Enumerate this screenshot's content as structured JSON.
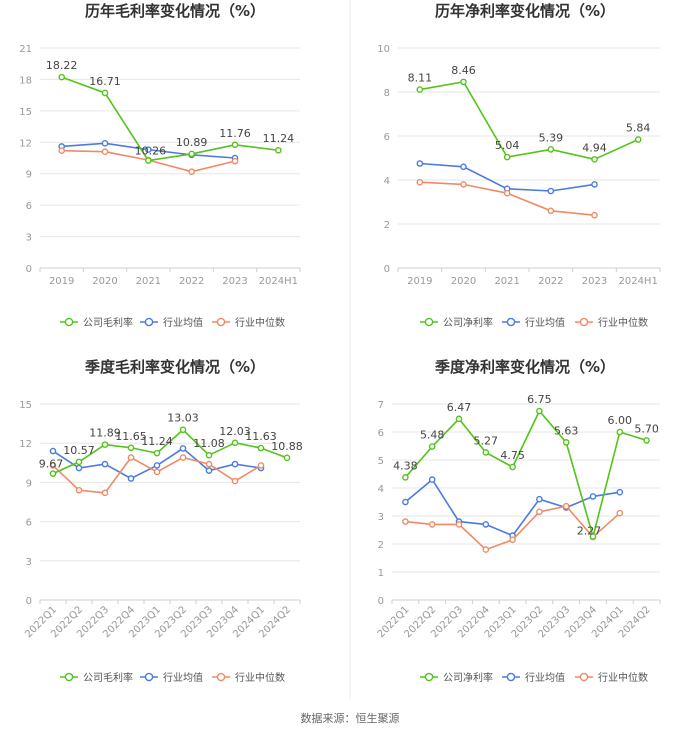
{
  "source": "数据来源：恒生聚源",
  "colors": {
    "company": "#52c41a",
    "avg": "#4a7be0",
    "median": "#f08a65"
  },
  "chart_data": [
    {
      "type": "line",
      "title": "历年毛利率变化情况（%）",
      "categories": [
        "2019",
        "2020",
        "2021",
        "2022",
        "2023",
        "2024H1"
      ],
      "ylim": [
        0,
        21
      ],
      "yticks": [
        "0",
        "3",
        "6",
        "9",
        "12",
        "15",
        "18",
        "21"
      ],
      "series": [
        {
          "name": "公司毛利率",
          "key": "company",
          "values": [
            18.22,
            16.71,
            10.26,
            10.89,
            11.76,
            11.24
          ]
        },
        {
          "name": "行业均值",
          "key": "avg",
          "values": [
            11.6,
            11.9,
            11.3,
            10.8,
            10.5,
            null
          ]
        },
        {
          "name": "行业中位数",
          "key": "median",
          "values": [
            11.2,
            11.1,
            10.3,
            9.2,
            10.2,
            null
          ]
        }
      ],
      "labels": [
        "18.22",
        "16.71",
        "10.26",
        "10.89",
        "11.76",
        "11.24"
      ]
    },
    {
      "type": "line",
      "title": "历年净利率变化情况（%）",
      "categories": [
        "2019",
        "2020",
        "2021",
        "2022",
        "2023",
        "2024H1"
      ],
      "ylim": [
        0,
        10
      ],
      "yticks": [
        "0",
        "2",
        "4",
        "6",
        "8",
        "10"
      ],
      "series": [
        {
          "name": "公司净利率",
          "key": "company",
          "values": [
            8.11,
            8.46,
            5.04,
            5.39,
            4.94,
            5.84
          ]
        },
        {
          "name": "行业均值",
          "key": "avg",
          "values": [
            4.75,
            4.6,
            3.6,
            3.5,
            3.8,
            null
          ]
        },
        {
          "name": "行业中位数",
          "key": "median",
          "values": [
            3.9,
            3.8,
            3.4,
            2.6,
            2.4,
            null
          ]
        }
      ],
      "labels": [
        "8.11",
        "8.46",
        "5.04",
        "5.39",
        "4.94",
        "5.84"
      ]
    },
    {
      "type": "line",
      "title": "季度毛利率变化情况（%）",
      "categories": [
        "2022Q1",
        "2022Q2",
        "2022Q3",
        "2022Q4",
        "2023Q1",
        "2023Q2",
        "2023Q3",
        "2023Q4",
        "2024Q1",
        "2024Q2"
      ],
      "ylim": [
        0,
        15
      ],
      "yticks": [
        "0",
        "3",
        "6",
        "9",
        "12",
        "15"
      ],
      "series": [
        {
          "name": "公司毛利率",
          "key": "company",
          "values": [
            9.67,
            10.57,
            11.89,
            11.65,
            11.24,
            13.03,
            11.08,
            12.03,
            11.63,
            10.88
          ]
        },
        {
          "name": "行业均值",
          "key": "avg",
          "values": [
            11.4,
            10.1,
            10.4,
            9.3,
            10.3,
            11.6,
            9.9,
            10.4,
            10.1,
            null
          ]
        },
        {
          "name": "行业中位数",
          "key": "median",
          "values": [
            10.3,
            8.4,
            8.2,
            10.9,
            9.8,
            10.9,
            10.4,
            9.1,
            10.3,
            null
          ]
        }
      ],
      "labels": [
        "9.67",
        "10.57",
        "11.89",
        "11.65",
        "11.24",
        "13.03",
        "11.08",
        "12.03",
        "11.63",
        "10.88"
      ]
    },
    {
      "type": "line",
      "title": "季度净利率变化情况（%）",
      "categories": [
        "2022Q1",
        "2022Q2",
        "2022Q3",
        "2022Q4",
        "2023Q1",
        "2023Q2",
        "2023Q3",
        "2023Q4",
        "2024Q1",
        "2024Q2"
      ],
      "ylim": [
        0,
        7
      ],
      "yticks": [
        "0",
        "1",
        "2",
        "3",
        "4",
        "5",
        "6",
        "7"
      ],
      "series": [
        {
          "name": "公司净利率",
          "key": "company",
          "values": [
            4.38,
            5.48,
            6.47,
            5.27,
            4.75,
            6.75,
            5.63,
            2.27,
            6.0,
            5.7
          ]
        },
        {
          "name": "行业均值",
          "key": "avg",
          "values": [
            3.5,
            4.3,
            2.8,
            2.7,
            2.3,
            3.6,
            3.3,
            3.7,
            3.85,
            null
          ]
        },
        {
          "name": "行业中位数",
          "key": "median",
          "values": [
            2.8,
            2.7,
            2.7,
            1.8,
            2.15,
            3.15,
            3.35,
            2.25,
            3.1,
            null
          ]
        }
      ],
      "labels": [
        "4.38",
        "5.48",
        "6.47",
        "5.27",
        "4.75",
        "6.75",
        "5.63",
        "2.27",
        "6.00",
        "5.70"
      ]
    }
  ]
}
